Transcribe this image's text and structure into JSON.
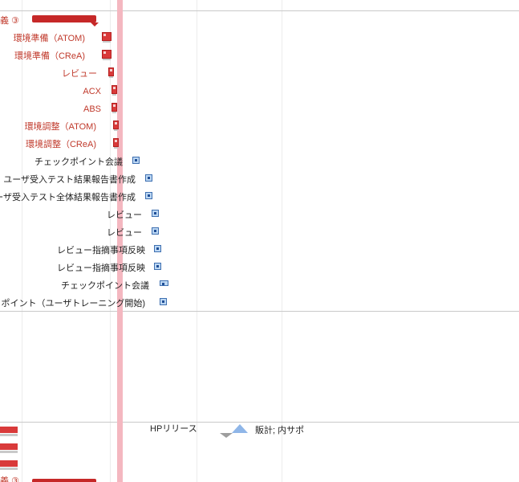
{
  "colors": {
    "accent_red": "#c0392b",
    "task_blue": "#3e6fb0",
    "today_line": "#f4b7c0"
  },
  "rows": [
    {
      "label": "義 ③",
      "color": "red"
    },
    {
      "label": "環境準備（ATOM)",
      "color": "red"
    },
    {
      "label": "環境準備（CReA)",
      "color": "red"
    },
    {
      "label": "レビュー",
      "color": "red"
    },
    {
      "label": "ACX",
      "color": "red"
    },
    {
      "label": "ABS",
      "color": "red"
    },
    {
      "label": "環境調整（ATOM)",
      "color": "red"
    },
    {
      "label": "環境調整（CReA)",
      "color": "red"
    },
    {
      "label": "チェックポイント会議",
      "color": "dark"
    },
    {
      "label": "ユーザ受入テスト結果報告書作成",
      "color": "dark"
    },
    {
      "label": "ーザ受入テスト全体結果報告書作成",
      "color": "dark"
    },
    {
      "label": "レビュー",
      "color": "dark"
    },
    {
      "label": "レビュー",
      "color": "dark"
    },
    {
      "label": "レビュー指摘事項反映",
      "color": "dark"
    },
    {
      "label": "レビュー指摘事項反映",
      "color": "dark"
    },
    {
      "label": "チェックポイント会議",
      "color": "dark"
    },
    {
      "label": "ポイント（ユーザトレーニング開始)",
      "color": "dark"
    }
  ],
  "lower": {
    "milestone_label": "HPリリース",
    "milestone_note": "販計; 内サポ",
    "bottom_label": "義 ③"
  }
}
